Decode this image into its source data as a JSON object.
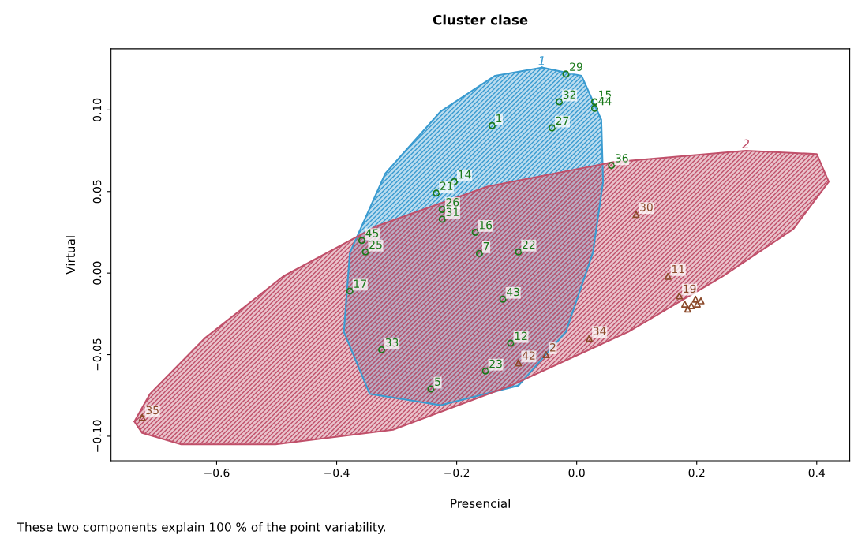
{
  "chart_data": {
    "type": "scatter",
    "title": "Cluster clase",
    "xlabel": "Presencial",
    "ylabel": "Virtual",
    "annotations": [
      "These two components explain 100 % of the point variability.",
      {
        "text": "1",
        "x": -0.141,
        "y": 0.0904
      },
      {
        "text": "29",
        "x": -0.018,
        "y": 0.122
      },
      {
        "text": "32",
        "x": -0.029,
        "y": 0.105
      },
      {
        "text": "15",
        "x": 0.03,
        "y": 0.105
      },
      {
        "text": "44",
        "x": 0.03,
        "y": 0.101
      },
      {
        "text": "27",
        "x": -0.041,
        "y": 0.089
      },
      {
        "text": "36",
        "x": 0.058,
        "y": 0.066
      },
      {
        "text": "14",
        "x": -0.204,
        "y": 0.056
      },
      {
        "text": "21",
        "x": -0.234,
        "y": 0.049
      },
      {
        "text": "26",
        "x": -0.224,
        "y": 0.039
      },
      {
        "text": "31",
        "x": -0.224,
        "y": 0.033
      },
      {
        "text": "16",
        "x": -0.169,
        "y": 0.025
      },
      {
        "text": "7",
        "x": -0.162,
        "y": 0.012
      },
      {
        "text": "22",
        "x": -0.097,
        "y": 0.013
      },
      {
        "text": "45",
        "x": -0.358,
        "y": 0.02
      },
      {
        "text": "25",
        "x": -0.352,
        "y": 0.013
      },
      {
        "text": "17",
        "x": -0.378,
        "y": -0.011
      },
      {
        "text": "43",
        "x": -0.123,
        "y": -0.016
      },
      {
        "text": "33",
        "x": -0.325,
        "y": -0.047
      },
      {
        "text": "12",
        "x": -0.11,
        "y": -0.043
      },
      {
        "text": "23",
        "x": -0.152,
        "y": -0.06
      },
      {
        "text": "5",
        "x": -0.243,
        "y": -0.071
      },
      {
        "text": "35",
        "x": -0.724,
        "y": -0.0885
      },
      {
        "text": "30",
        "x": 0.099,
        "y": 0.036
      },
      {
        "text": "11",
        "x": 0.152,
        "y": -0.002
      },
      {
        "text": "19",
        "x": 0.171,
        "y": -0.014
      },
      {
        "text": "34",
        "x": 0.021,
        "y": -0.04
      },
      {
        "text": "2",
        "x": -0.051,
        "y": -0.05
      },
      {
        "text": "42",
        "x": -0.097,
        "y": -0.055
      }
    ],
    "xlim": [
      -0.776,
      0.455
    ],
    "ylim": [
      -0.115,
      0.1375
    ],
    "xticks": [
      {
        "value": -0.6,
        "label": "−0.6"
      },
      {
        "value": -0.4,
        "label": "−0.4"
      },
      {
        "value": -0.2,
        "label": "−0.2"
      },
      {
        "value": 0.0,
        "label": "0.0"
      },
      {
        "value": 0.2,
        "label": "0.2"
      },
      {
        "value": 0.4,
        "label": "0.4"
      }
    ],
    "yticks": [
      {
        "value": -0.1,
        "label": "−0.10"
      },
      {
        "value": -0.05,
        "label": "−0.05"
      },
      {
        "value": 0.0,
        "label": "0.00"
      },
      {
        "value": 0.05,
        "label": "0.05"
      },
      {
        "value": 0.1,
        "label": "0.10"
      }
    ],
    "grid": false,
    "series": [
      {
        "name": "1",
        "type": "area",
        "color": "#3a9bd0",
        "x": [
          -0.058,
          0.008,
          0.041,
          0.044,
          0.027,
          -0.018,
          -0.097,
          -0.227,
          -0.345,
          -0.388,
          -0.378,
          -0.319,
          -0.227,
          -0.136,
          -0.058
        ],
        "values": [
          0.126,
          0.121,
          0.094,
          0.056,
          0.0125,
          -0.036,
          -0.069,
          -0.081,
          -0.074,
          -0.036,
          0.0125,
          0.061,
          0.099,
          0.121,
          0.126
        ]
      },
      {
        "name": "2",
        "type": "area",
        "color": "#c0506a",
        "x": [
          -0.737,
          -0.711,
          -0.62,
          -0.489,
          -0.332,
          -0.149,
          0.06,
          0.282,
          0.4,
          0.42,
          0.361,
          0.243,
          0.086,
          -0.11,
          -0.306,
          -0.502,
          -0.659,
          -0.724,
          -0.737
        ],
        "values": [
          -0.091,
          -0.074,
          -0.04,
          -0.002,
          0.029,
          0.053,
          0.068,
          0.075,
          0.073,
          0.056,
          0.027,
          -0.002,
          -0.036,
          -0.069,
          -0.096,
          -0.105,
          -0.105,
          -0.098,
          -0.091
        ]
      },
      {
        "marker": "circle",
        "color": "#1a7a1a",
        "x": [
          -0.141,
          -0.018,
          -0.029,
          0.03,
          0.03,
          -0.041,
          0.058,
          -0.204,
          -0.234,
          -0.224,
          -0.224,
          -0.169,
          -0.162,
          -0.097,
          -0.358,
          -0.352,
          -0.378,
          -0.123,
          -0.325,
          -0.11,
          -0.152,
          -0.243
        ],
        "values": [
          0.0904,
          0.122,
          0.105,
          0.105,
          0.101,
          0.089,
          0.066,
          0.056,
          0.049,
          0.039,
          0.033,
          0.025,
          0.012,
          0.013,
          0.02,
          0.013,
          -0.011,
          -0.016,
          -0.047,
          -0.043,
          -0.06,
          -0.071
        ]
      },
      {
        "marker": "triangle",
        "color": "#8b4a2b",
        "x": [
          -0.724,
          0.099,
          0.152,
          0.171,
          0.18,
          0.191,
          0.201,
          0.207,
          0.185,
          0.198,
          0.021,
          -0.051,
          -0.097
        ],
        "values": [
          -0.0885,
          0.036,
          -0.002,
          -0.014,
          -0.019,
          -0.02,
          -0.019,
          -0.017,
          -0.022,
          -0.016,
          -0.04,
          -0.05,
          -0.055
        ]
      }
    ]
  }
}
